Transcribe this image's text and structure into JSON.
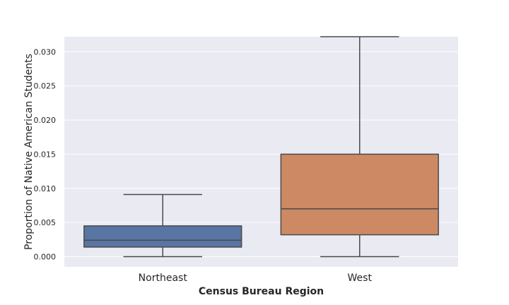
{
  "chart_data": {
    "type": "boxplot",
    "title": "",
    "xlabel": "Census Bureau Region",
    "ylabel": "Proportion of Native American Students",
    "ylim": [
      -0.0015,
      0.0322
    ],
    "yticks": [
      0.0,
      0.005,
      0.01,
      0.015,
      0.02,
      0.025,
      0.03
    ],
    "ytick_labels": [
      "0.000",
      "0.005",
      "0.010",
      "0.015",
      "0.020",
      "0.025",
      "0.030"
    ],
    "grid": true,
    "categories": [
      "Northeast",
      "West"
    ],
    "boxes": [
      {
        "category": "Northeast",
        "whisker_low": 0.0,
        "q1": 0.0014,
        "median": 0.0024,
        "q3": 0.0045,
        "whisker_high": 0.0091,
        "color": "#5875a4"
      },
      {
        "category": "West",
        "whisker_low": 0.0,
        "q1": 0.0032,
        "median": 0.007,
        "q3": 0.015,
        "whisker_high": 0.0322,
        "color": "#cc8963"
      }
    ]
  }
}
